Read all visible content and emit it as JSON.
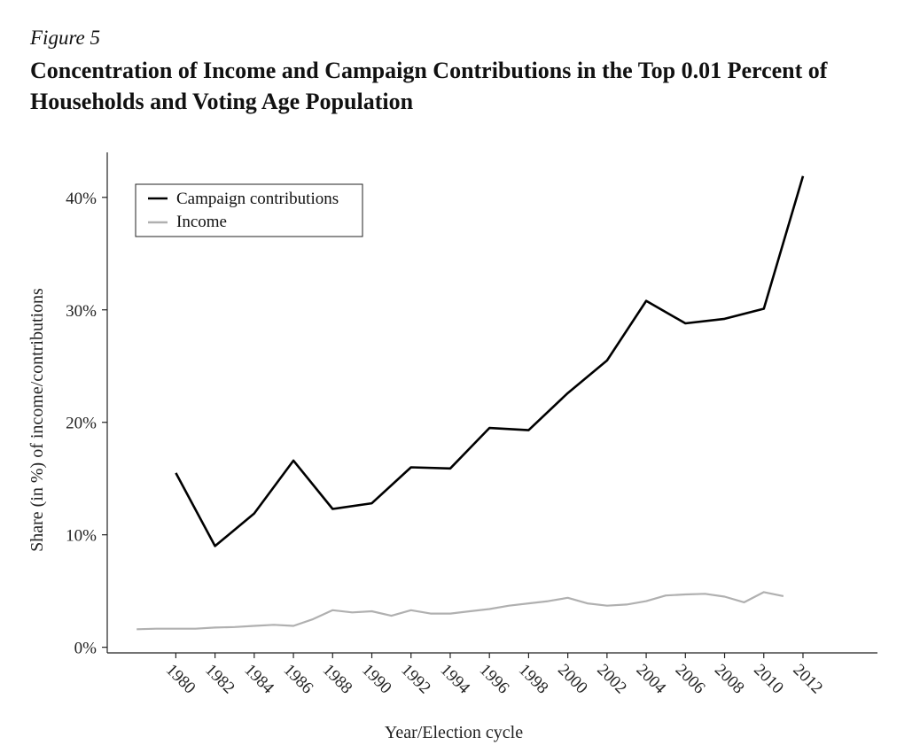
{
  "figure_label": "Figure 5",
  "figure_title": "Concentration of Income and Campaign Contributions in the Top 0.01 Percent of Households and Voting Age Population",
  "chart_data": {
    "type": "line",
    "title": "Concentration of Income and Campaign Contributions in the Top 0.01 Percent of Households and Voting Age Population",
    "xlabel": "Year/Election cycle",
    "ylabel": "Share (in %) of income/contributions",
    "xlim": [
      1976.5,
      2015.8
    ],
    "ylim": [
      -0.5,
      44
    ],
    "x_ticks": [
      1980,
      1982,
      1984,
      1986,
      1988,
      1990,
      1992,
      1994,
      1996,
      1998,
      2000,
      2002,
      2004,
      2006,
      2008,
      2010,
      2012
    ],
    "y_ticks": [
      0,
      10,
      20,
      30,
      40
    ],
    "y_tick_labels": [
      "0%",
      "10%",
      "20%",
      "30%",
      "40%"
    ],
    "grid": false,
    "legend_position": "top-left",
    "series": [
      {
        "name": "Campaign contributions",
        "color": "#000000",
        "x": [
          1980,
          1982,
          1984,
          1986,
          1988,
          1990,
          1992,
          1994,
          1996,
          1998,
          2000,
          2002,
          2004,
          2006,
          2008,
          2010,
          2012
        ],
        "y": [
          15.5,
          9.0,
          11.9,
          16.6,
          12.3,
          12.8,
          16.0,
          15.9,
          19.5,
          19.3,
          22.6,
          25.5,
          30.8,
          28.8,
          29.2,
          30.1,
          41.9
        ]
      },
      {
        "name": "Income",
        "color": "#b0b0b0",
        "x": [
          1978,
          1979,
          1980,
          1981,
          1982,
          1983,
          1984,
          1985,
          1986,
          1987,
          1988,
          1989,
          1990,
          1991,
          1992,
          1993,
          1994,
          1995,
          1996,
          1997,
          1998,
          1999,
          2000,
          2001,
          2002,
          2003,
          2004,
          2005,
          2006,
          2007,
          2008,
          2009,
          2010,
          2011
        ],
        "y": [
          1.6,
          1.65,
          1.65,
          1.65,
          1.75,
          1.8,
          1.9,
          2.0,
          1.9,
          2.5,
          3.3,
          3.1,
          3.2,
          2.8,
          3.3,
          3.0,
          3.0,
          3.2,
          3.4,
          3.7,
          3.9,
          4.1,
          4.4,
          3.9,
          3.7,
          3.8,
          4.1,
          4.6,
          4.7,
          4.75,
          4.5,
          4.0,
          4.9,
          4.55
        ]
      }
    ]
  }
}
